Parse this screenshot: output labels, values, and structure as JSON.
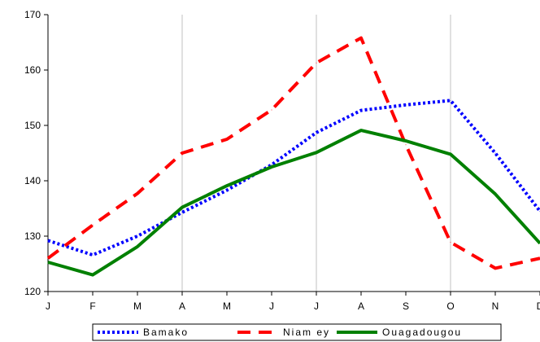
{
  "chart_data": {
    "type": "line",
    "categories": [
      "J",
      "F",
      "M",
      "A",
      "M",
      "J",
      "J",
      "A",
      "S",
      "O",
      "N",
      "D"
    ],
    "ylim": [
      120,
      170
    ],
    "yticks": [
      120,
      130,
      140,
      150,
      160,
      170
    ],
    "grid": "vertical",
    "legend": "bottom",
    "series": [
      {
        "name": "Bamako",
        "color": "#0000ff",
        "style": "dotted",
        "values": [
          129.2,
          126.6,
          130.0,
          134.3,
          138.3,
          142.9,
          148.7,
          152.7,
          153.7,
          154.5,
          145.0,
          134.5
        ]
      },
      {
        "name": "Niam ey",
        "color": "#ff0000",
        "style": "dashed",
        "values": [
          126.0,
          132.0,
          137.7,
          145.0,
          147.5,
          152.8,
          161.3,
          165.8,
          146.5,
          128.9,
          124.2,
          126.0
        ]
      },
      {
        "name": "Ouagadougou",
        "color": "#008000",
        "style": "solid",
        "values": [
          125.3,
          123.0,
          128.1,
          135.2,
          139.1,
          142.5,
          145.1,
          149.1,
          147.2,
          144.8,
          137.6,
          128.7
        ]
      }
    ]
  }
}
